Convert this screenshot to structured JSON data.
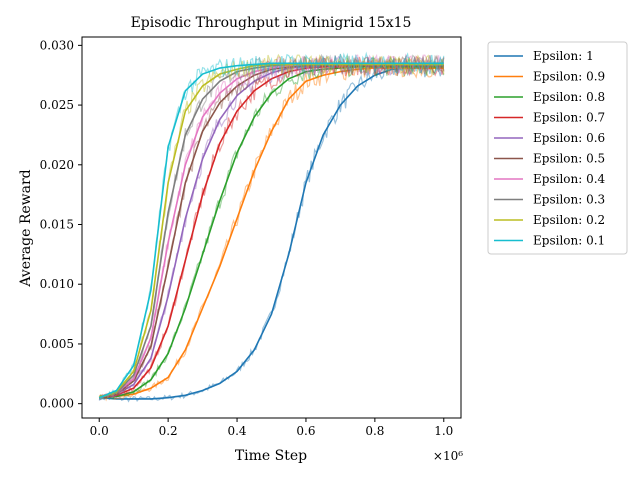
{
  "chart_data": {
    "type": "line",
    "title": "Episodic Throughput in Minigrid 15x15",
    "xlabel": "Time Step",
    "ylabel": "Average Reward",
    "x_multiplier_label": "×10⁶",
    "xlim": [
      -0.05,
      1.05
    ],
    "ylim": [
      -0.0012,
      0.0307
    ],
    "xticks": [
      0.0,
      0.2,
      0.4,
      0.6,
      0.8,
      1.0
    ],
    "xtick_labels": [
      "0.0",
      "0.2",
      "0.4",
      "0.6",
      "0.8",
      "1.0"
    ],
    "yticks": [
      0.0,
      0.005,
      0.01,
      0.015,
      0.02,
      0.025,
      0.03
    ],
    "ytick_labels": [
      "0.000",
      "0.005",
      "0.010",
      "0.015",
      "0.020",
      "0.025",
      "0.030"
    ],
    "grid": false,
    "legend_position": "outside-right",
    "x": [
      0.0,
      0.05,
      0.1,
      0.15,
      0.2,
      0.25,
      0.3,
      0.35,
      0.4,
      0.45,
      0.5,
      0.55,
      0.6,
      0.65,
      0.7,
      0.75,
      0.8,
      0.85,
      0.9,
      0.95,
      1.0
    ],
    "series": [
      {
        "name": "Epsilon: 1",
        "color": "#1f77b4",
        "values": [
          0.0005,
          0.0004,
          0.0004,
          0.0004,
          0.0005,
          0.0007,
          0.0011,
          0.0017,
          0.0027,
          0.0045,
          0.0075,
          0.0125,
          0.0185,
          0.0225,
          0.025,
          0.0266,
          0.0275,
          0.028,
          0.0281,
          0.0281,
          0.0281
        ]
      },
      {
        "name": "Epsilon: 0.9",
        "color": "#ff7f0e",
        "values": [
          0.0005,
          0.0006,
          0.0008,
          0.0013,
          0.0022,
          0.0045,
          0.008,
          0.0115,
          0.0155,
          0.0195,
          0.0228,
          0.0255,
          0.027,
          0.0275,
          0.0278,
          0.028,
          0.0281,
          0.0281,
          0.0281,
          0.0281,
          0.0281
        ]
      },
      {
        "name": "Epsilon: 0.8",
        "color": "#2ca02c",
        "values": [
          0.0005,
          0.0006,
          0.001,
          0.002,
          0.0042,
          0.008,
          0.0125,
          0.017,
          0.021,
          0.024,
          0.026,
          0.0272,
          0.0278,
          0.028,
          0.0281,
          0.0282,
          0.0282,
          0.0282,
          0.0282,
          0.0282,
          0.0282
        ]
      },
      {
        "name": "Epsilon: 0.7",
        "color": "#d62728",
        "values": [
          0.0005,
          0.0007,
          0.0013,
          0.003,
          0.0065,
          0.012,
          0.0175,
          0.0218,
          0.0245,
          0.0262,
          0.0272,
          0.0278,
          0.0281,
          0.0282,
          0.0282,
          0.0283,
          0.0283,
          0.0283,
          0.0283,
          0.0283,
          0.0283
        ]
      },
      {
        "name": "Epsilon: 0.6",
        "color": "#9467bd",
        "values": [
          0.0005,
          0.0008,
          0.0016,
          0.0038,
          0.009,
          0.0155,
          0.0205,
          0.0238,
          0.0258,
          0.027,
          0.0277,
          0.0281,
          0.0282,
          0.0283,
          0.0283,
          0.0283,
          0.0283,
          0.0283,
          0.0283,
          0.0283,
          0.0283
        ]
      },
      {
        "name": "Epsilon: 0.5",
        "color": "#8c564b",
        "values": [
          0.0005,
          0.0008,
          0.0019,
          0.0048,
          0.0115,
          0.0185,
          0.0228,
          0.0252,
          0.0266,
          0.0275,
          0.028,
          0.0282,
          0.0283,
          0.0283,
          0.0283,
          0.0283,
          0.0283,
          0.0283,
          0.0283,
          0.0283,
          0.0283
        ]
      },
      {
        "name": "Epsilon: 0.4",
        "color": "#e377c2",
        "values": [
          0.0005,
          0.0009,
          0.0021,
          0.0055,
          0.0135,
          0.02,
          0.024,
          0.026,
          0.0272,
          0.0278,
          0.0281,
          0.0283,
          0.0284,
          0.0284,
          0.0284,
          0.0284,
          0.0284,
          0.0284,
          0.0284,
          0.0284,
          0.0284
        ]
      },
      {
        "name": "Epsilon: 0.3",
        "color": "#7f7f7f",
        "values": [
          0.0005,
          0.0009,
          0.0024,
          0.0065,
          0.016,
          0.0225,
          0.0255,
          0.027,
          0.0278,
          0.0281,
          0.0283,
          0.0284,
          0.0284,
          0.0284,
          0.0284,
          0.0284,
          0.0284,
          0.0284,
          0.0284,
          0.0284,
          0.0284
        ]
      },
      {
        "name": "Epsilon: 0.2",
        "color": "#bcbd22",
        "values": [
          0.0005,
          0.001,
          0.0027,
          0.0078,
          0.0185,
          0.0245,
          0.0266,
          0.0276,
          0.028,
          0.0283,
          0.0284,
          0.0284,
          0.0284,
          0.0284,
          0.0284,
          0.0284,
          0.0284,
          0.0284,
          0.0284,
          0.0284,
          0.0284
        ]
      },
      {
        "name": "Epsilon: 0.1",
        "color": "#17becf",
        "values": [
          0.0005,
          0.0011,
          0.0032,
          0.0095,
          0.0215,
          0.0262,
          0.0276,
          0.0281,
          0.0283,
          0.0284,
          0.0285,
          0.0285,
          0.0285,
          0.0285,
          0.0285,
          0.0285,
          0.0285,
          0.0285,
          0.0285,
          0.0285,
          0.0285
        ]
      }
    ]
  }
}
